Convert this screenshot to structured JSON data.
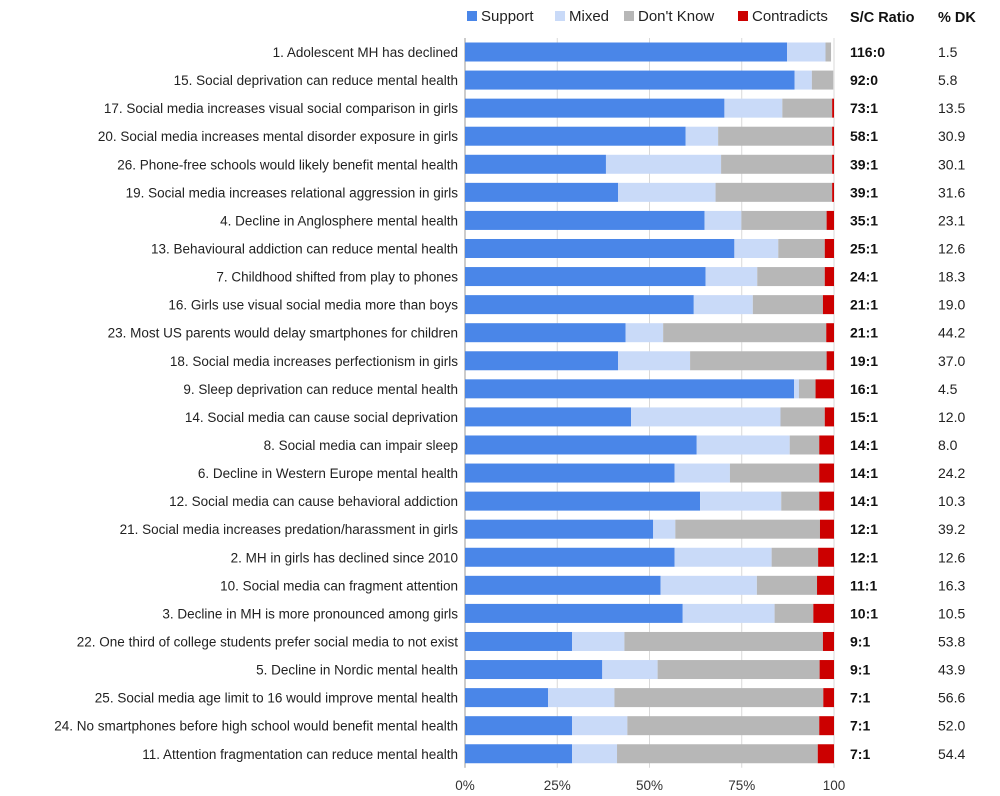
{
  "chart_data": {
    "type": "bar",
    "orientation": "horizontal",
    "stacked": true,
    "xlim": [
      0,
      100
    ],
    "ticks": [
      "0%",
      "25%",
      "50%",
      "75%",
      "100"
    ],
    "legend_position": "top",
    "headers": {
      "ratio": "S/C Ratio",
      "dk": "% DK"
    },
    "series": [
      {
        "name": "Support",
        "color": "#4a86e8"
      },
      {
        "name": "Mixed",
        "color": "#c9daf8"
      },
      {
        "name": "Don't Know",
        "color": "#b7b7b7"
      },
      {
        "name": "Contradicts",
        "color": "#cc0000"
      }
    ],
    "rows": [
      {
        "label": "1. Adolescent MH has declined",
        "values": [
          87.3,
          10.4,
          1.5,
          0
        ],
        "ratio": "116:0",
        "dk": "1.5"
      },
      {
        "label": "15. Social deprivation can reduce mental health",
        "values": [
          89.3,
          4.7,
          5.8,
          0
        ],
        "ratio": "92:0",
        "dk": "5.8"
      },
      {
        "label": "17. Social media increases visual social comparison in girls",
        "values": [
          70.3,
          15.7,
          13.5,
          0.5
        ],
        "ratio": "73:1",
        "dk": "13.5"
      },
      {
        "label": "20. Social media increases mental disorder exposure in girls",
        "values": [
          59.8,
          8.8,
          30.9,
          0.5
        ],
        "ratio": "58:1",
        "dk": "30.9"
      },
      {
        "label": "26. Phone-free schools would likely benefit mental health",
        "values": [
          38.2,
          31.2,
          30.1,
          0.5
        ],
        "ratio": "39:1",
        "dk": "30.1"
      },
      {
        "label": "19. Social media increases relational aggression in girls",
        "values": [
          41.5,
          26.4,
          31.6,
          0.5
        ],
        "ratio": "39:1",
        "dk": "31.6"
      },
      {
        "label": "4. Decline in Anglosphere mental health",
        "values": [
          64.9,
          10.0,
          23.1,
          2.0
        ],
        "ratio": "35:1",
        "dk": "23.1"
      },
      {
        "label": "13. Behavioural addiction can reduce mental health",
        "values": [
          73.0,
          11.9,
          12.6,
          2.5
        ],
        "ratio": "25:1",
        "dk": "12.6"
      },
      {
        "label": "7. Childhood shifted from play to phones",
        "values": [
          65.2,
          14.0,
          18.3,
          2.5
        ],
        "ratio": "24:1",
        "dk": "18.3"
      },
      {
        "label": "16. Girls use visual social media more than boys",
        "values": [
          62.0,
          16.0,
          19.0,
          3.0
        ],
        "ratio": "21:1",
        "dk": "19.0"
      },
      {
        "label": "23. Most US parents would delay smartphones for children",
        "values": [
          43.5,
          10.2,
          44.2,
          2.1
        ],
        "ratio": "21:1",
        "dk": "44.2"
      },
      {
        "label": "18. Social media increases perfectionism in girls",
        "values": [
          41.5,
          19.5,
          37.0,
          2.0
        ],
        "ratio": "19:1",
        "dk": "37.0"
      },
      {
        "label": "9. Sleep deprivation can reduce mental health",
        "values": [
          89.2,
          1.3,
          4.5,
          5.0
        ],
        "ratio": "16:1",
        "dk": "4.5"
      },
      {
        "label": "14. Social media can cause social deprivation",
        "values": [
          45.0,
          40.5,
          12.0,
          2.5
        ],
        "ratio": "15:1",
        "dk": "12.0"
      },
      {
        "label": "8. Social media can impair sleep",
        "values": [
          62.8,
          25.2,
          8.0,
          4.0
        ],
        "ratio": "14:1",
        "dk": "8.0"
      },
      {
        "label": "6. Decline in Western Europe mental health",
        "values": [
          56.8,
          15.0,
          24.2,
          4.0
        ],
        "ratio": "14:1",
        "dk": "24.2"
      },
      {
        "label": "12. Social media can cause behavioral addiction",
        "values": [
          63.7,
          22.0,
          10.3,
          4.0
        ],
        "ratio": "14:1",
        "dk": "10.3"
      },
      {
        "label": "21. Social media increases predation/harassment in girls",
        "values": [
          51.0,
          6.0,
          39.2,
          3.8
        ],
        "ratio": "12:1",
        "dk": "39.2"
      },
      {
        "label": "2. MH in girls has declined since 2010",
        "values": [
          56.8,
          26.3,
          12.6,
          4.3
        ],
        "ratio": "12:1",
        "dk": "12.6"
      },
      {
        "label": "10. Social media can fragment attention",
        "values": [
          53.0,
          26.1,
          16.3,
          4.6
        ],
        "ratio": "11:1",
        "dk": "16.3"
      },
      {
        "label": "3. Decline in MH is more pronounced among girls",
        "values": [
          59.0,
          24.9,
          10.5,
          5.6
        ],
        "ratio": "10:1",
        "dk": "10.5"
      },
      {
        "label": "22. One third of college students prefer social media to not exist",
        "values": [
          29.0,
          14.2,
          53.8,
          3.0
        ],
        "ratio": "9:1",
        "dk": "53.8"
      },
      {
        "label": "5. Decline in Nordic mental health",
        "values": [
          37.2,
          15.0,
          43.9,
          3.9
        ],
        "ratio": "9:1",
        "dk": "43.9"
      },
      {
        "label": "25. Social media age limit to 16 would improve mental health",
        "values": [
          22.5,
          18.0,
          56.6,
          2.9
        ],
        "ratio": "7:1",
        "dk": "56.6"
      },
      {
        "label": "24. No smartphones before high school would benefit mental health",
        "values": [
          29.0,
          15.0,
          52.0,
          4.0
        ],
        "ratio": "7:1",
        "dk": "52.0"
      },
      {
        "label": "11. Attention fragmentation can reduce mental health",
        "values": [
          29.0,
          12.2,
          54.4,
          4.4
        ],
        "ratio": "7:1",
        "dk": "54.4"
      }
    ]
  }
}
